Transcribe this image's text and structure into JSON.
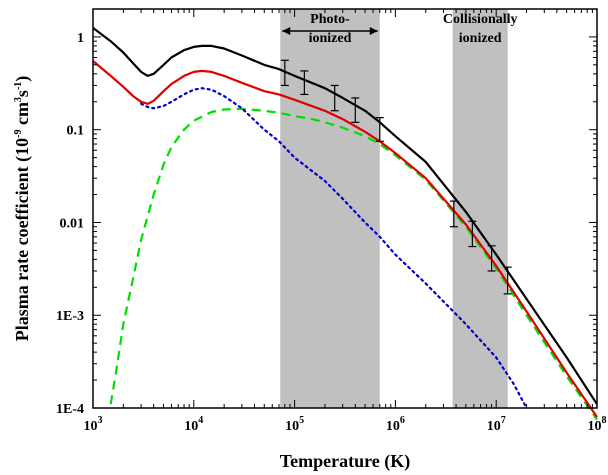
{
  "chart_data": {
    "type": "line",
    "xscale": "log",
    "yscale": "log",
    "xlim": [
      1000,
      100000000
    ],
    "ylim": [
      0.0001,
      2
    ],
    "xlabel": "Temperature (K)",
    "ylabel_parts": [
      "Plasma rate coefficient (10",
      "-9",
      " cm",
      "3",
      "s",
      "-1",
      ")"
    ],
    "x_ticks": [
      {
        "value": 1000,
        "base": "10",
        "exp": "3"
      },
      {
        "value": 10000,
        "base": "10",
        "exp": "4"
      },
      {
        "value": 100000,
        "base": "10",
        "exp": "5"
      },
      {
        "value": 1000000,
        "base": "10",
        "exp": "6"
      },
      {
        "value": 10000000,
        "base": "10",
        "exp": "7"
      },
      {
        "value": 100000000,
        "base": "10",
        "exp": "8"
      }
    ],
    "y_ticks": [
      {
        "value": 1,
        "label": "1"
      },
      {
        "value": 0.1,
        "label": "0.1"
      },
      {
        "value": 0.01,
        "label": "0.01"
      },
      {
        "value": 0.001,
        "label": "1E-3"
      },
      {
        "value": 0.0001,
        "label": "1E-4"
      }
    ],
    "bands": [
      {
        "x": [
          72000,
          700000
        ],
        "lines": [
          "Photo-",
          "ionized"
        ],
        "color": "#c0c0c0"
      },
      {
        "x": [
          3700000,
          13000000
        ],
        "lines": [
          "Collisionally",
          "ionized"
        ],
        "color": "#c0c0c0"
      }
    ],
    "series": [
      {
        "style": "solid",
        "color": "#000000",
        "x": [
          1000,
          1500,
          2000,
          2500,
          3000,
          3500,
          4000,
          5000,
          6000,
          8000,
          10000,
          12000,
          15000,
          20000,
          30000,
          50000,
          70000,
          100000,
          200000,
          300000,
          500000,
          700000,
          1000000,
          2000000,
          5000000,
          10000000,
          20000000,
          50000000,
          100000000
        ],
        "y": [
          1.25,
          0.9,
          0.68,
          0.52,
          0.42,
          0.38,
          0.4,
          0.5,
          0.6,
          0.72,
          0.78,
          0.8,
          0.8,
          0.75,
          0.63,
          0.5,
          0.45,
          0.38,
          0.28,
          0.22,
          0.16,
          0.12,
          0.085,
          0.045,
          0.013,
          0.0045,
          0.0015,
          0.00035,
          0.00011
        ]
      },
      {
        "style": "solid",
        "color": "#e00000",
        "x": [
          1000,
          1500,
          2000,
          2500,
          3000,
          3500,
          4000,
          5000,
          6000,
          8000,
          10000,
          12000,
          15000,
          20000,
          30000,
          50000,
          70000,
          100000,
          200000,
          300000,
          500000,
          700000,
          1000000,
          2000000,
          5000000,
          10000000,
          20000000,
          50000000,
          100000000
        ],
        "y": [
          0.55,
          0.38,
          0.29,
          0.23,
          0.2,
          0.19,
          0.205,
          0.26,
          0.31,
          0.38,
          0.42,
          0.43,
          0.42,
          0.38,
          0.32,
          0.26,
          0.24,
          0.21,
          0.16,
          0.13,
          0.095,
          0.075,
          0.056,
          0.03,
          0.0095,
          0.0034,
          0.0011,
          0.00024,
          8e-05
        ]
      },
      {
        "style": "dotted",
        "color": "#0000cc",
        "x": [
          3000,
          3500,
          4000,
          5000,
          6000,
          8000,
          10000,
          12000,
          15000,
          20000,
          30000,
          50000,
          70000,
          100000,
          200000,
          300000,
          500000,
          700000,
          1000000,
          2000000,
          5000000,
          10000000,
          15000000,
          20000000
        ],
        "y": [
          0.19,
          0.175,
          0.17,
          0.18,
          0.2,
          0.24,
          0.27,
          0.28,
          0.27,
          0.23,
          0.17,
          0.1,
          0.075,
          0.05,
          0.028,
          0.018,
          0.01,
          0.007,
          0.0045,
          0.0022,
          0.0008,
          0.00035,
          0.00018,
          0.0001
        ]
      },
      {
        "style": "dashed",
        "color": "#00dd00",
        "x": [
          1500,
          1700,
          2000,
          2500,
          3000,
          4000,
          5000,
          6000,
          8000,
          10000,
          15000,
          20000,
          30000,
          50000,
          70000,
          100000,
          150000,
          200000,
          300000,
          500000,
          700000,
          1000000,
          2000000,
          5000000,
          10000000,
          20000000,
          50000000,
          100000000
        ],
        "y": [
          0.00011,
          0.00025,
          0.0008,
          0.0025,
          0.0065,
          0.02,
          0.042,
          0.065,
          0.1,
          0.125,
          0.155,
          0.165,
          0.168,
          0.16,
          0.152,
          0.14,
          0.13,
          0.12,
          0.105,
          0.085,
          0.07,
          0.053,
          0.029,
          0.009,
          0.0032,
          0.001,
          0.00022,
          7.5e-05
        ]
      }
    ],
    "error_bars": [
      {
        "x": 80000,
        "y": 0.42,
        "ylow": 0.3,
        "yhigh": 0.56
      },
      {
        "x": 125000,
        "y": 0.33,
        "ylow": 0.24,
        "yhigh": 0.43
      },
      {
        "x": 250000,
        "y": 0.22,
        "ylow": 0.16,
        "yhigh": 0.3
      },
      {
        "x": 400000,
        "y": 0.16,
        "ylow": 0.12,
        "yhigh": 0.22
      },
      {
        "x": 700000,
        "y": 0.1,
        "ylow": 0.075,
        "yhigh": 0.135
      },
      {
        "x": 3800000,
        "y": 0.0125,
        "ylow": 0.009,
        "yhigh": 0.017
      },
      {
        "x": 5800000,
        "y": 0.0075,
        "ylow": 0.0055,
        "yhigh": 0.0103
      },
      {
        "x": 9000000,
        "y": 0.0042,
        "ylow": 0.003,
        "yhigh": 0.0056
      },
      {
        "x": 13000000,
        "y": 0.0024,
        "ylow": 0.0017,
        "yhigh": 0.0033
      }
    ]
  }
}
